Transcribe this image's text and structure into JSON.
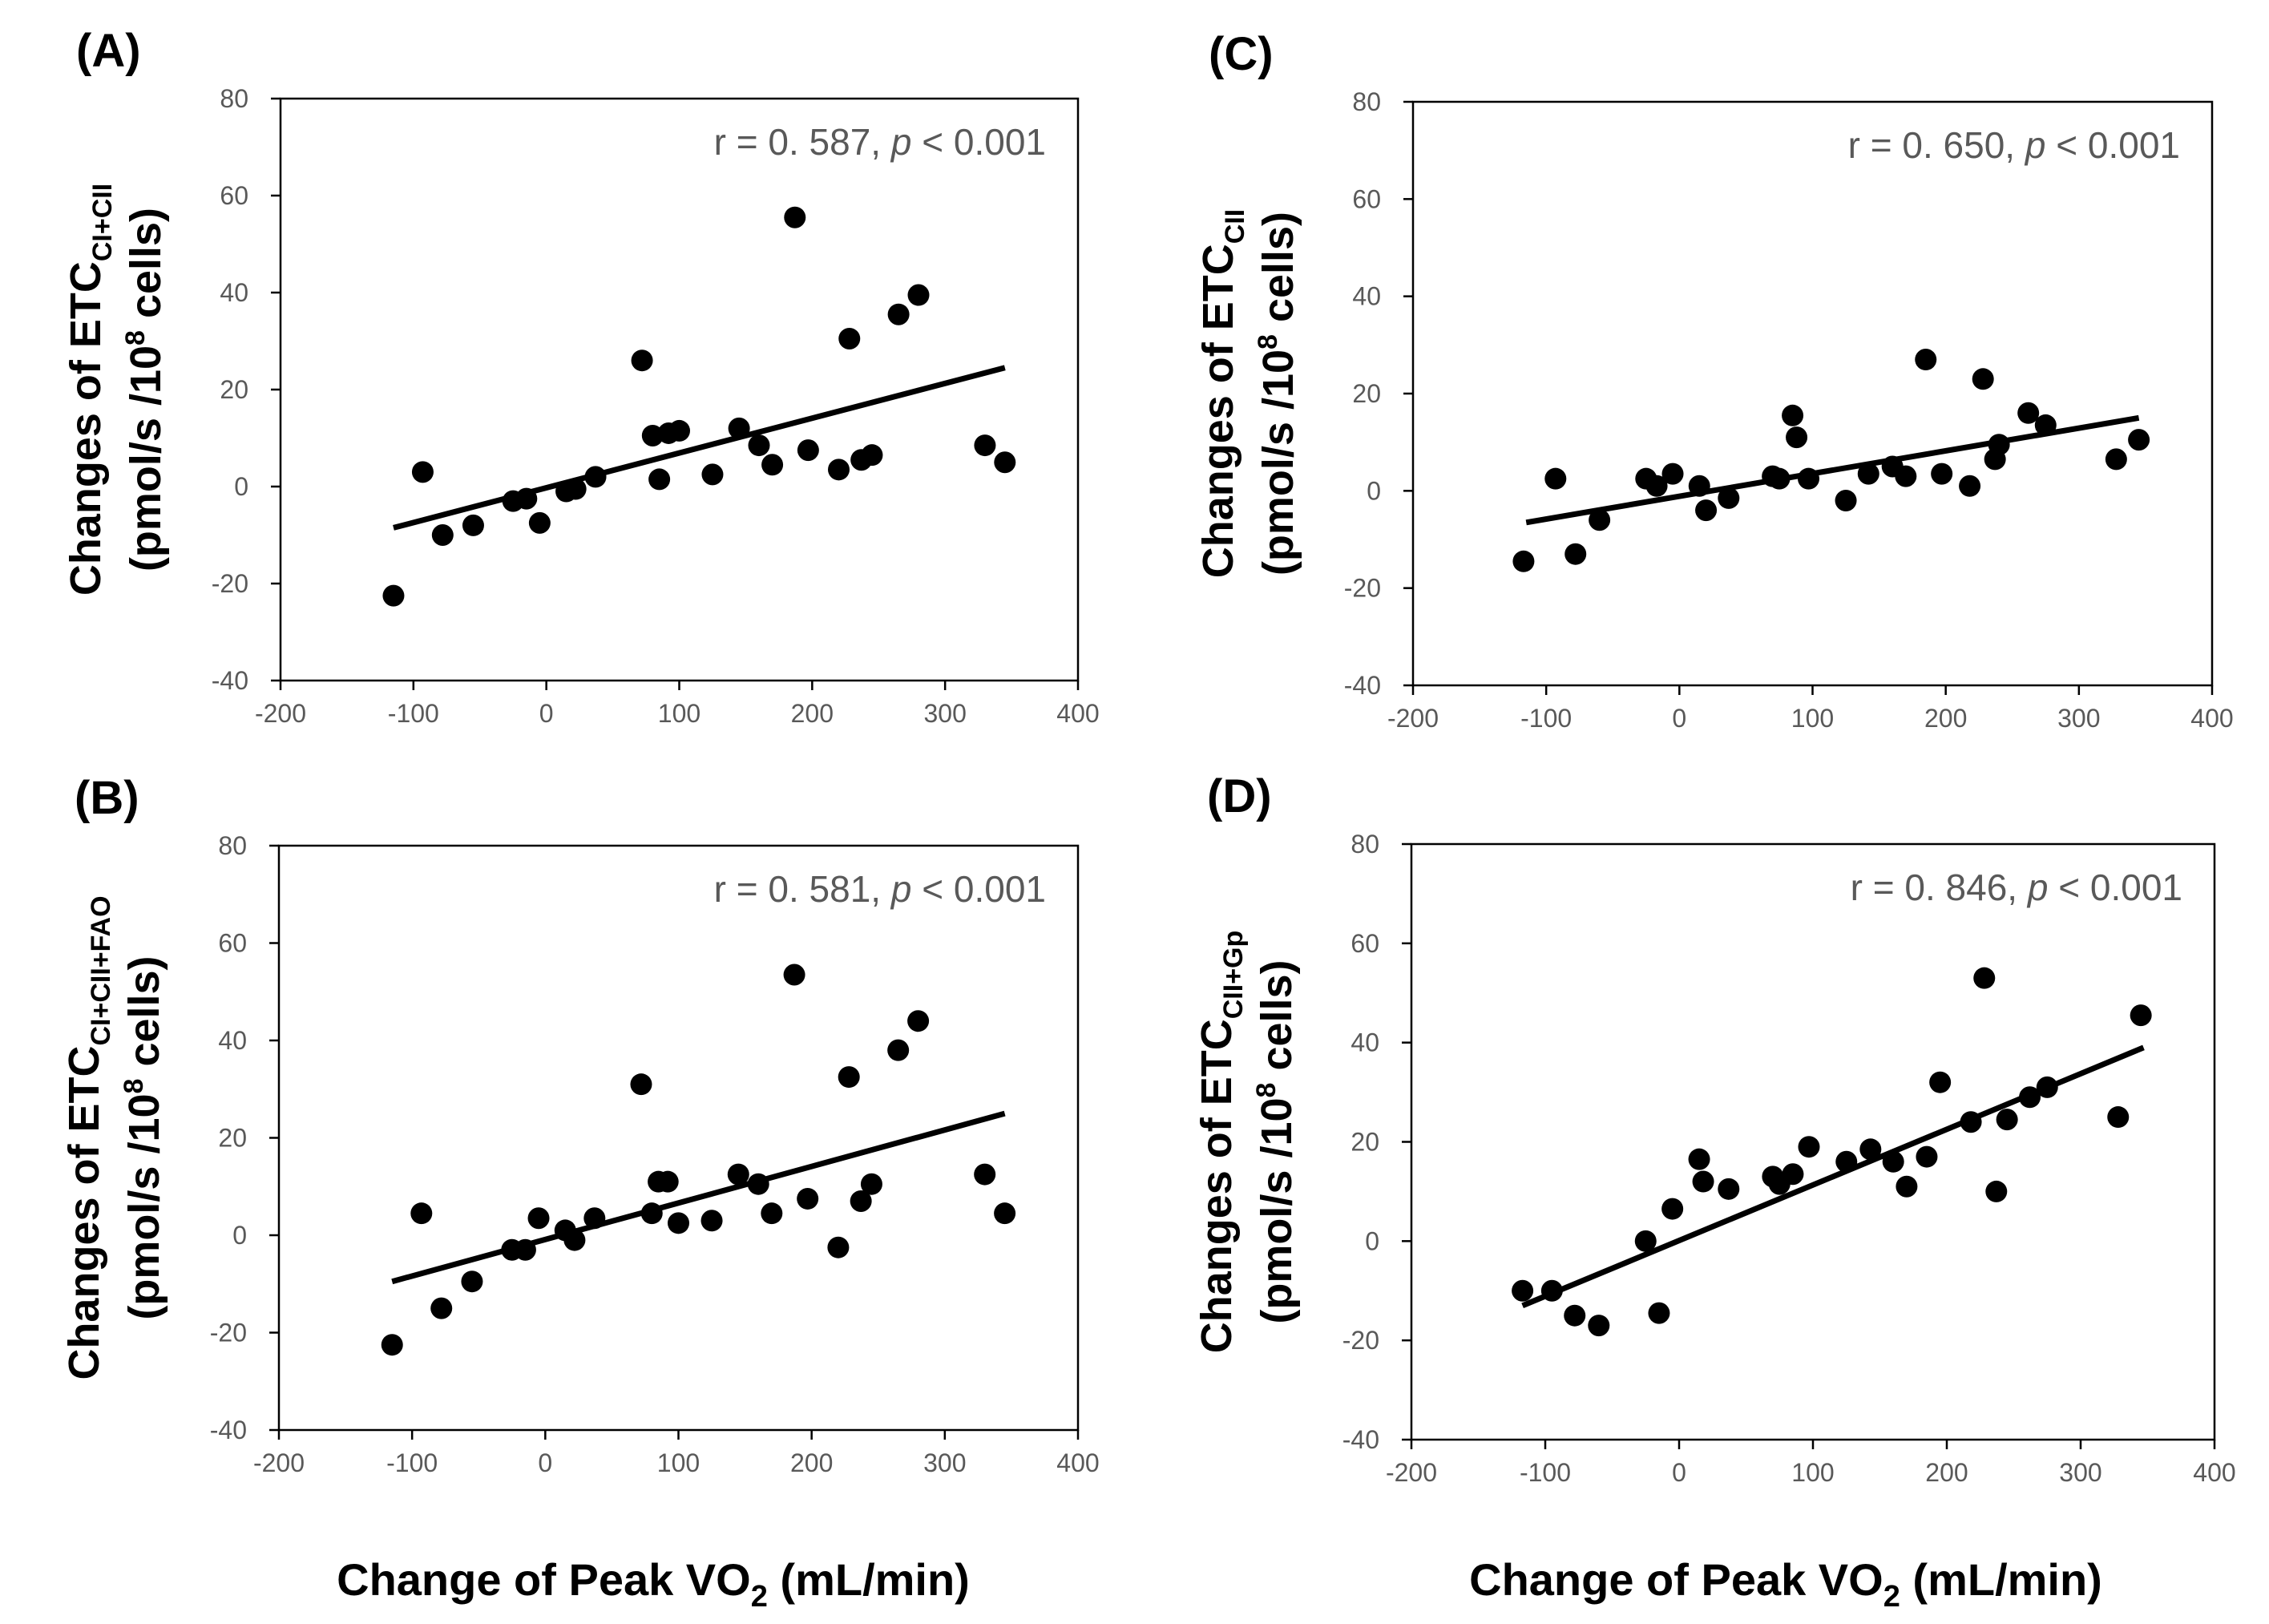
{
  "xlabel_main": "Change of Peak VO",
  "xlabel_sub": "2",
  "xlabel_tail": " (mL/min)",
  "ylabel_prefix": "Changes of ETC",
  "ylabel_line2_pre": "(pmol/s /10",
  "ylabel_line2_sup": "8",
  "ylabel_line2_post": " cells)",
  "colors": {
    "points": "#000000",
    "trend": "#000000",
    "axis": "#000000",
    "text": "#595959"
  },
  "chart_data": [
    {
      "panel": "(A)",
      "type": "scatter",
      "ylabel_sub": "CI+CII",
      "annotation_r": "r = 0. 587, ",
      "annotation_p": "p",
      "annotation_tail": " < 0.001",
      "xlim": [
        -200,
        400
      ],
      "ylim": [
        -40,
        80
      ],
      "xticks": [
        -200,
        -100,
        0,
        100,
        200,
        300,
        400
      ],
      "yticks": [
        -40,
        -20,
        0,
        20,
        40,
        60,
        80
      ],
      "points": [
        [
          -115,
          -22.5
        ],
        [
          -93,
          3
        ],
        [
          -78,
          -10
        ],
        [
          -55,
          -8
        ],
        [
          -25,
          -3
        ],
        [
          -15,
          -2.5
        ],
        [
          -5,
          -7.5
        ],
        [
          15,
          -1
        ],
        [
          22,
          -0.5
        ],
        [
          37,
          2
        ],
        [
          72,
          26
        ],
        [
          80,
          10.5
        ],
        [
          85,
          1.5
        ],
        [
          92,
          11
        ],
        [
          100,
          11.5
        ],
        [
          125,
          2.5
        ],
        [
          145,
          12
        ],
        [
          160,
          8.5
        ],
        [
          170,
          4.5
        ],
        [
          197,
          7.5
        ],
        [
          187,
          55.5
        ],
        [
          220,
          3.5
        ],
        [
          228,
          30.5
        ],
        [
          237,
          5.5
        ],
        [
          245,
          6.5
        ],
        [
          265,
          35.5
        ],
        [
          280,
          39.5
        ],
        [
          330,
          8.5
        ],
        [
          345,
          5
        ]
      ],
      "trend": [
        [
          -115,
          -8.5
        ],
        [
          345,
          24.5
        ]
      ]
    },
    {
      "panel": "(B)",
      "type": "scatter",
      "ylabel_sub": "CI+CII+FAO",
      "annotation_r": "r = 0. 581, ",
      "annotation_p": "p",
      "annotation_tail": " < 0.001",
      "xlim": [
        -200,
        400
      ],
      "ylim": [
        -40,
        80
      ],
      "xticks": [
        -200,
        -100,
        0,
        100,
        200,
        300,
        400
      ],
      "yticks": [
        -40,
        -20,
        0,
        20,
        40,
        60,
        80
      ],
      "points": [
        [
          -115,
          -22.5
        ],
        [
          -93,
          4.5
        ],
        [
          -78,
          -15
        ],
        [
          -55,
          -9.5
        ],
        [
          -25,
          -3
        ],
        [
          -15,
          -3
        ],
        [
          -5,
          3.5
        ],
        [
          15,
          1
        ],
        [
          22,
          -1
        ],
        [
          37,
          3.5
        ],
        [
          72,
          31
        ],
        [
          80,
          4.5
        ],
        [
          85,
          11
        ],
        [
          92,
          11
        ],
        [
          100,
          2.5
        ],
        [
          125,
          3
        ],
        [
          145,
          12.5
        ],
        [
          160,
          10.5
        ],
        [
          170,
          4.5
        ],
        [
          197,
          7.5
        ],
        [
          187,
          53.5
        ],
        [
          220,
          -2.5
        ],
        [
          228,
          32.5
        ],
        [
          237,
          7
        ],
        [
          245,
          10.5
        ],
        [
          265,
          38
        ],
        [
          280,
          44
        ],
        [
          330,
          12.5
        ],
        [
          345,
          4.5
        ]
      ],
      "trend": [
        [
          -115,
          -9.5
        ],
        [
          345,
          25
        ]
      ]
    },
    {
      "panel": "(C)",
      "type": "scatter",
      "ylabel_sub": "CII",
      "annotation_r": "r = 0. 650, ",
      "annotation_p": "p",
      "annotation_tail": " < 0.001",
      "xlim": [
        -200,
        400
      ],
      "ylim": [
        -40,
        80
      ],
      "xticks": [
        -200,
        -100,
        0,
        100,
        200,
        300,
        400
      ],
      "yticks": [
        -40,
        -20,
        0,
        20,
        40,
        60,
        80
      ],
      "points": [
        [
          -117,
          -14.5
        ],
        [
          -93,
          2.5
        ],
        [
          -78,
          -13
        ],
        [
          -60,
          -6
        ],
        [
          -25,
          2.5
        ],
        [
          -17,
          1
        ],
        [
          -5,
          3.5
        ],
        [
          15,
          1
        ],
        [
          20,
          -4
        ],
        [
          37,
          -1.5
        ],
        [
          70,
          3
        ],
        [
          75,
          2.5
        ],
        [
          85,
          15.5
        ],
        [
          88,
          11
        ],
        [
          97,
          2.5
        ],
        [
          125,
          -2
        ],
        [
          142,
          3.5
        ],
        [
          160,
          5
        ],
        [
          170,
          3
        ],
        [
          185,
          27
        ],
        [
          197,
          3.5
        ],
        [
          218,
          1
        ],
        [
          228,
          23
        ],
        [
          237,
          6.5
        ],
        [
          240,
          9.5
        ],
        [
          262,
          16
        ],
        [
          275,
          13.5
        ],
        [
          328,
          6.5
        ],
        [
          345,
          10.5
        ]
      ],
      "trend": [
        [
          -115,
          -6.5
        ],
        [
          345,
          15
        ]
      ]
    },
    {
      "panel": "(D)",
      "type": "scatter",
      "ylabel_sub": "CII+Gp",
      "annotation_r": "r = 0. 846, ",
      "annotation_p": "p",
      "annotation_tail": " < 0.001",
      "xlim": [
        -200,
        400
      ],
      "ylim": [
        -40,
        80
      ],
      "xticks": [
        -200,
        -100,
        0,
        100,
        200,
        300,
        400
      ],
      "yticks": [
        -40,
        -20,
        0,
        20,
        40,
        60,
        80
      ],
      "points": [
        [
          -117,
          -10
        ],
        [
          -95,
          -10
        ],
        [
          -78,
          -15
        ],
        [
          -60,
          -17
        ],
        [
          -25,
          0
        ],
        [
          -15,
          -14.5
        ],
        [
          -5,
          6.5
        ],
        [
          15,
          16.5
        ],
        [
          18,
          12
        ],
        [
          37,
          10.5
        ],
        [
          70,
          13
        ],
        [
          75,
          11.5
        ],
        [
          85,
          13.5
        ],
        [
          97,
          19
        ],
        [
          125,
          16
        ],
        [
          143,
          18.5
        ],
        [
          160,
          16
        ],
        [
          170,
          11
        ],
        [
          185,
          17
        ],
        [
          195,
          32
        ],
        [
          218,
          24
        ],
        [
          228,
          53
        ],
        [
          237,
          10
        ],
        [
          245,
          24.5
        ],
        [
          262,
          29
        ],
        [
          275,
          31
        ],
        [
          328,
          25
        ],
        [
          345,
          45.5
        ]
      ],
      "trend": [
        [
          -117,
          -13
        ],
        [
          347,
          39
        ]
      ]
    }
  ]
}
